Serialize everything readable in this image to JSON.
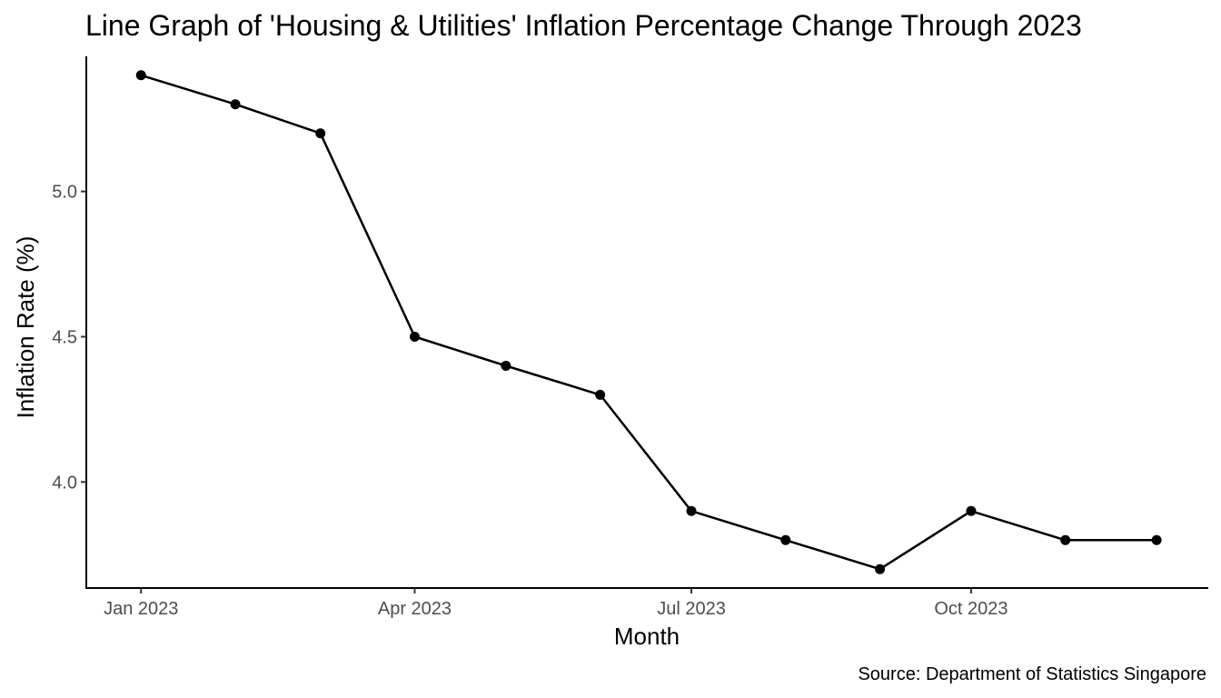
{
  "chart_data": {
    "type": "line",
    "title": "Line Graph of 'Housing & Utilities' Inflation Percentage Change Through 2023",
    "xlabel": "Month",
    "ylabel": "Inflation Rate (%)",
    "caption": "Source: Department of Statistics Singapore",
    "x": [
      "2023-01-01",
      "2023-02-01",
      "2023-03-01",
      "2023-04-01",
      "2023-05-01",
      "2023-06-01",
      "2023-07-01",
      "2023-08-01",
      "2023-09-01",
      "2023-10-01",
      "2023-11-01",
      "2023-12-01"
    ],
    "series": [
      {
        "values": [
          5.4,
          5.3,
          5.2,
          4.5,
          4.4,
          4.3,
          3.9,
          3.8,
          3.7,
          3.9,
          3.8,
          3.8
        ]
      }
    ],
    "x_ticks": [
      {
        "date": "2023-01-01",
        "label": "Jan 2023"
      },
      {
        "date": "2023-04-01",
        "label": "Apr 2023"
      },
      {
        "date": "2023-07-01",
        "label": "Jul 2023"
      },
      {
        "date": "2023-10-01",
        "label": "Oct 2023"
      }
    ],
    "y_ticks": [
      {
        "value": 4.0,
        "label": "4.0"
      },
      {
        "value": 4.5,
        "label": "4.5"
      },
      {
        "value": 5.0,
        "label": "5.0"
      }
    ],
    "ylim": [
      3.635,
      5.465
    ],
    "xlim": [
      "2022-12-14",
      "2023-12-18"
    ],
    "grid": false,
    "line_color": "#000000",
    "point_color": "#000000"
  }
}
